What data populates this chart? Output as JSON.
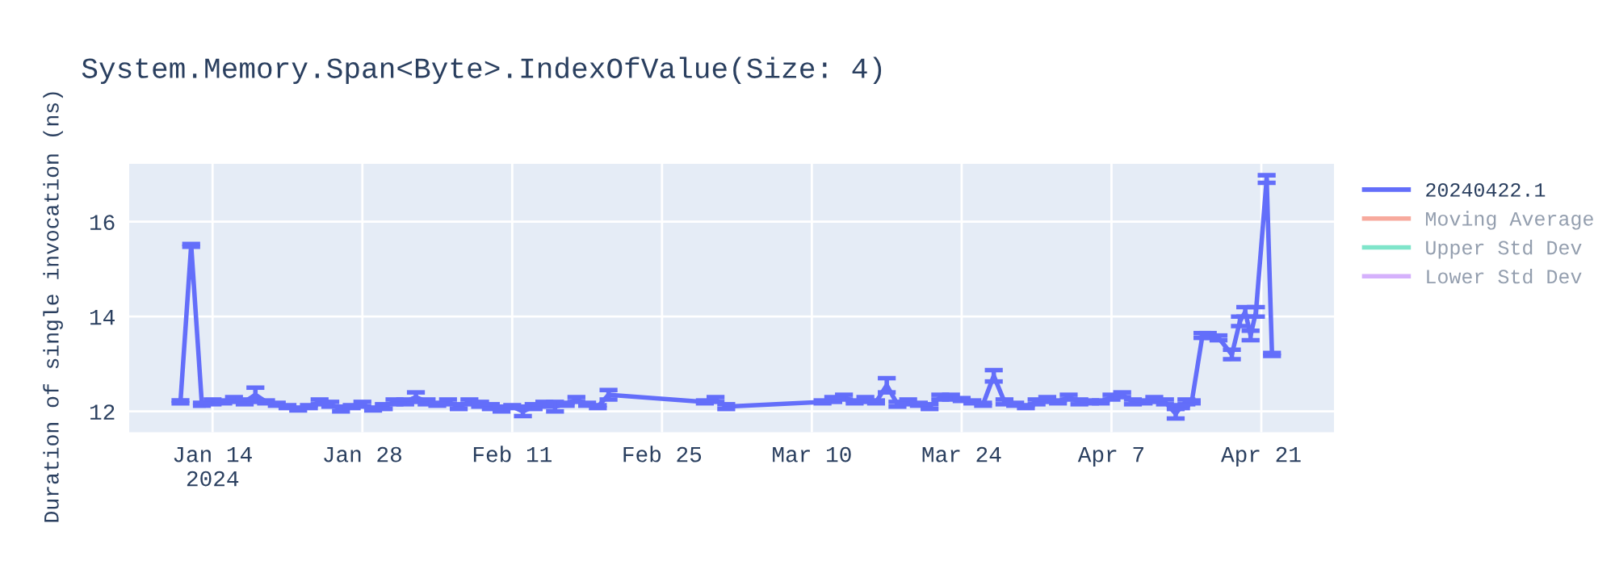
{
  "chart_data": {
    "type": "line",
    "title": "System.Memory.Span<Byte>.IndexOfValue(Size: 4)",
    "ylabel": "Duration of single invocation (ns)",
    "xlim": [
      "2024-01-06T05:00",
      "2024-04-27T19:00"
    ],
    "xticks": [
      {
        "value": "2024-01-14",
        "label": "Jan 14\n2024"
      },
      {
        "value": "2024-01-28",
        "label": "Jan 28"
      },
      {
        "value": "2024-02-11",
        "label": "Feb 11"
      },
      {
        "value": "2024-02-25",
        "label": "Feb 25"
      },
      {
        "value": "2024-03-10",
        "label": "Mar 10"
      },
      {
        "value": "2024-03-24",
        "label": "Mar 24"
      },
      {
        "value": "2024-04-07",
        "label": "Apr 7"
      },
      {
        "value": "2024-04-21",
        "label": "Apr 21"
      }
    ],
    "ylim": [
      11.56,
      17.22
    ],
    "yticks": [
      12,
      14,
      16
    ],
    "grid": true,
    "legend": "top right",
    "marker": "none",
    "line_style": "solid",
    "series": [
      {
        "name": "20240422.1",
        "color": "#636efa",
        "x": [
          "2024-01-11",
          "2024-01-12",
          "2024-01-13",
          "2024-01-14",
          "2024-01-15",
          "2024-01-16",
          "2024-01-17",
          "2024-01-18",
          "2024-01-19",
          "2024-01-20",
          "2024-01-21",
          "2024-01-22",
          "2024-01-23",
          "2024-01-24",
          "2024-01-25",
          "2024-01-26",
          "2024-01-27",
          "2024-01-28",
          "2024-01-29",
          "2024-01-30",
          "2024-01-31",
          "2024-02-01",
          "2024-02-02",
          "2024-02-03",
          "2024-02-04",
          "2024-02-05",
          "2024-02-06",
          "2024-02-07",
          "2024-02-08",
          "2024-02-09",
          "2024-02-10",
          "2024-02-11",
          "2024-02-12",
          "2024-02-13",
          "2024-02-14",
          "2024-02-15",
          "2024-02-16",
          "2024-02-17",
          "2024-02-18",
          "2024-02-19",
          "2024-02-20",
          "2024-02-29",
          "2024-03-01",
          "2024-03-02",
          "2024-03-11",
          "2024-03-12",
          "2024-03-13",
          "2024-03-14",
          "2024-03-15",
          "2024-03-16",
          "2024-03-17",
          "2024-03-18",
          "2024-03-19",
          "2024-03-20",
          "2024-03-21",
          "2024-03-22",
          "2024-03-23",
          "2024-03-24",
          "2024-03-25",
          "2024-03-26",
          "2024-03-27",
          "2024-03-28",
          "2024-03-29",
          "2024-03-30",
          "2024-03-31",
          "2024-04-01",
          "2024-04-02",
          "2024-04-03",
          "2024-04-04",
          "2024-04-05",
          "2024-04-06",
          "2024-04-07",
          "2024-04-08",
          "2024-04-09",
          "2024-04-10",
          "2024-04-11",
          "2024-04-12",
          "2024-04-13",
          "2024-04-13T12:00",
          "2024-04-14",
          "2024-04-14T12:00",
          "2024-04-15T12:00",
          "2024-04-16",
          "2024-04-17",
          "2024-04-18T06:00",
          "2024-04-19",
          "2024-04-19T12:00",
          "2024-04-20",
          "2024-04-20T12:00",
          "2024-04-21T12:00",
          "2024-04-22"
        ],
        "values": [
          12.2,
          15.5,
          12.15,
          12.2,
          12.2,
          12.25,
          12.2,
          12.35,
          12.2,
          12.15,
          12.1,
          12.05,
          12.1,
          12.2,
          12.15,
          12.05,
          12.1,
          12.15,
          12.05,
          12.1,
          12.2,
          12.2,
          12.3,
          12.2,
          12.15,
          12.2,
          12.1,
          12.2,
          12.15,
          12.1,
          12.05,
          12.1,
          12.0,
          12.1,
          12.15,
          12.1,
          12.15,
          12.25,
          12.15,
          12.1,
          12.35,
          12.2,
          12.25,
          12.1,
          12.2,
          12.25,
          12.3,
          12.2,
          12.25,
          12.2,
          12.55,
          12.15,
          12.2,
          12.15,
          12.1,
          12.3,
          12.3,
          12.25,
          12.2,
          12.15,
          12.75,
          12.2,
          12.15,
          12.1,
          12.2,
          12.25,
          12.2,
          12.3,
          12.2,
          12.2,
          12.2,
          12.3,
          12.35,
          12.2,
          12.2,
          12.25,
          12.2,
          11.95,
          12.1,
          12.2,
          12.2,
          13.6,
          13.6,
          13.55,
          13.2,
          13.9,
          14.1,
          13.6,
          14.1,
          16.9,
          13.2
        ],
        "errors": [
          0.03,
          0.03,
          0.03,
          0.05,
          0.03,
          0.05,
          0.05,
          0.15,
          0.03,
          0.03,
          0.03,
          0.03,
          0.03,
          0.05,
          0.05,
          0.05,
          0.03,
          0.05,
          0.03,
          0.05,
          0.05,
          0.05,
          0.1,
          0.05,
          0.03,
          0.05,
          0.05,
          0.05,
          0.05,
          0.05,
          0.05,
          0.03,
          0.1,
          0.05,
          0.05,
          0.1,
          0.03,
          0.05,
          0.03,
          0.03,
          0.1,
          0.03,
          0.05,
          0.05,
          0.03,
          0.05,
          0.05,
          0.03,
          0.05,
          0.03,
          0.15,
          0.05,
          0.05,
          0.03,
          0.05,
          0.05,
          0.05,
          0.03,
          0.03,
          0.03,
          0.12,
          0.05,
          0.03,
          0.03,
          0.05,
          0.05,
          0.03,
          0.05,
          0.05,
          0.03,
          0.03,
          0.05,
          0.05,
          0.05,
          0.03,
          0.05,
          0.05,
          0.1,
          0.03,
          0.05,
          0.03,
          0.05,
          0.05,
          0.05,
          0.1,
          0.1,
          0.1,
          0.1,
          0.1,
          0.08,
          0.03
        ]
      },
      {
        "name": "Moving Average",
        "color": "#ef553b"
      },
      {
        "name": "Upper Std Dev",
        "color": "#00cc96"
      },
      {
        "name": "Lower Std Dev",
        "color": "#ab63fa"
      }
    ]
  }
}
